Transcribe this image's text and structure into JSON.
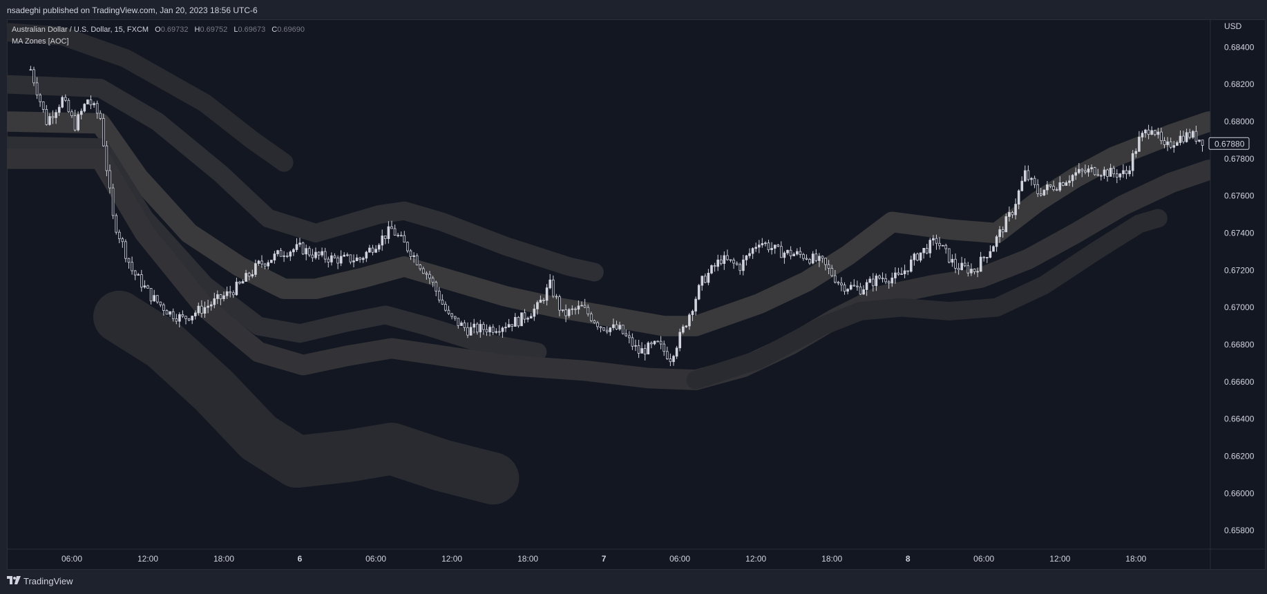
{
  "header": {
    "publisher": "nsadeghi published on TradingView.com, Jan 20, 2023 18:56 UTC-6"
  },
  "legend": {
    "symbol": "Australian Dollar / U.S. Dollar, 15, FXCM",
    "o_key": "O",
    "o_val": "0.69732",
    "h_key": "H",
    "h_val": "0.69752",
    "l_key": "L",
    "l_val": "0.69673",
    "c_key": "C",
    "c_val": "0.69690",
    "indicator": "MA Zones [AOC]"
  },
  "footer": {
    "brand": "TradingView"
  },
  "colors": {
    "background": "#131722",
    "frame": "#1e222d",
    "candle": "#d1d4dc",
    "band_inner": "#4a4a4a",
    "band_outer": "#2f3035",
    "text": "#d1d4dc"
  },
  "chart_data": {
    "type": "line",
    "currency_label": "USD",
    "last_price_label": "0.67880",
    "ylim": [
      0.657,
      0.6855
    ],
    "y_ticks": [
      0.684,
      0.682,
      0.68,
      0.678,
      0.676,
      0.674,
      0.672,
      0.67,
      0.668,
      0.666,
      0.664,
      0.662,
      0.66,
      0.658
    ],
    "y_tick_labels": [
      "0.68400",
      "0.68200",
      "0.68000",
      "0.67800",
      "0.67600",
      "0.67400",
      "0.67200",
      "0.67000",
      "0.66800",
      "0.66600",
      "0.66400",
      "0.66200",
      "0.66000",
      "0.65800"
    ],
    "x_ticks": [
      {
        "label": "06:00",
        "bar": 13
      },
      {
        "label": "12:00",
        "bar": 37
      },
      {
        "label": "18:00",
        "bar": 61
      },
      {
        "label": "6",
        "bar": 85
      },
      {
        "label": "06:00",
        "bar": 109
      },
      {
        "label": "12:00",
        "bar": 133
      },
      {
        "label": "18:00",
        "bar": 157
      },
      {
        "label": "7",
        "bar": 181
      },
      {
        "label": "06:00",
        "bar": 205
      },
      {
        "label": "12:00",
        "bar": 229
      },
      {
        "label": "18:00",
        "bar": 253
      },
      {
        "label": "8",
        "bar": 277
      },
      {
        "label": "06:00",
        "bar": 301
      },
      {
        "label": "12:00",
        "bar": 325
      },
      {
        "label": "18:00",
        "bar": 349
      }
    ],
    "x_range_bars": [
      -7.5,
      372.5
    ],
    "price_path": [
      [
        0,
        0.6828
      ],
      [
        5,
        0.68
      ],
      [
        10,
        0.6812
      ],
      [
        14,
        0.6798
      ],
      [
        18,
        0.6812
      ],
      [
        22,
        0.6802
      ],
      [
        26,
        0.6748
      ],
      [
        32,
        0.672
      ],
      [
        38,
        0.6706
      ],
      [
        44,
        0.6697
      ],
      [
        48,
        0.6694
      ],
      [
        55,
        0.67
      ],
      [
        62,
        0.6707
      ],
      [
        66,
        0.6712
      ],
      [
        72,
        0.6723
      ],
      [
        80,
        0.673
      ],
      [
        85,
        0.6732
      ],
      [
        90,
        0.6728
      ],
      [
        96,
        0.6726
      ],
      [
        104,
        0.6726
      ],
      [
        110,
        0.6736
      ],
      [
        114,
        0.6742
      ],
      [
        120,
        0.673
      ],
      [
        126,
        0.6716
      ],
      [
        132,
        0.6695
      ],
      [
        138,
        0.6688
      ],
      [
        146,
        0.6689
      ],
      [
        154,
        0.6693
      ],
      [
        160,
        0.67
      ],
      [
        164,
        0.6712
      ],
      [
        168,
        0.6696
      ],
      [
        174,
        0.67
      ],
      [
        180,
        0.669
      ],
      [
        186,
        0.6688
      ],
      [
        192,
        0.6676
      ],
      [
        198,
        0.668
      ],
      [
        202,
        0.6673
      ],
      [
        206,
        0.6688
      ],
      [
        212,
        0.6714
      ],
      [
        218,
        0.6726
      ],
      [
        224,
        0.6722
      ],
      [
        230,
        0.6736
      ],
      [
        236,
        0.673
      ],
      [
        244,
        0.6728
      ],
      [
        250,
        0.6724
      ],
      [
        256,
        0.6712
      ],
      [
        262,
        0.671
      ],
      [
        268,
        0.6716
      ],
      [
        274,
        0.6716
      ],
      [
        280,
        0.6728
      ],
      [
        286,
        0.6736
      ],
      [
        292,
        0.6722
      ],
      [
        298,
        0.672
      ],
      [
        304,
        0.6734
      ],
      [
        310,
        0.6752
      ],
      [
        314,
        0.6772
      ],
      [
        318,
        0.6762
      ],
      [
        324,
        0.6766
      ],
      [
        330,
        0.6772
      ],
      [
        336,
        0.6774
      ],
      [
        342,
        0.6772
      ],
      [
        346,
        0.6772
      ],
      [
        350,
        0.679
      ],
      [
        354,
        0.6798
      ],
      [
        358,
        0.6785
      ],
      [
        362,
        0.6791
      ],
      [
        366,
        0.6793
      ],
      [
        370,
        0.679
      ]
    ],
    "bands": [
      {
        "name": "upper-far",
        "color": "#2a2b30",
        "width": 0.001,
        "points": [
          [
            -7,
            0.6848
          ],
          [
            10,
            0.6846
          ],
          [
            30,
            0.6834
          ],
          [
            55,
            0.681
          ],
          [
            70,
            0.679
          ],
          [
            80,
            0.6778
          ]
        ]
      },
      {
        "name": "upper-mid",
        "color": "#2e2f34",
        "width": 0.001,
        "points": [
          [
            -7,
            0.682
          ],
          [
            22,
            0.6818
          ],
          [
            40,
            0.68
          ],
          [
            60,
            0.6772
          ],
          [
            75,
            0.6748
          ],
          [
            90,
            0.674
          ],
          [
            110,
            0.675
          ],
          [
            118,
            0.6752
          ],
          [
            130,
            0.6746
          ],
          [
            150,
            0.6733
          ],
          [
            170,
            0.6722
          ],
          [
            178,
            0.6719
          ]
        ]
      },
      {
        "name": "ma-main",
        "color": "#3a3a3d",
        "width": 0.0011,
        "points": [
          [
            -7,
            0.68
          ],
          [
            22,
            0.6799
          ],
          [
            34,
            0.677
          ],
          [
            50,
            0.674
          ],
          [
            66,
            0.6722
          ],
          [
            80,
            0.671
          ],
          [
            90,
            0.671
          ],
          [
            105,
            0.6716
          ],
          [
            118,
            0.6722
          ],
          [
            130,
            0.6716
          ],
          [
            150,
            0.6706
          ],
          [
            166,
            0.67
          ],
          [
            180,
            0.6696
          ],
          [
            200,
            0.669
          ],
          [
            210,
            0.669
          ],
          [
            230,
            0.6702
          ],
          [
            245,
            0.6714
          ],
          [
            258,
            0.6728
          ],
          [
            272,
            0.6746
          ],
          [
            290,
            0.6742
          ],
          [
            305,
            0.674
          ],
          [
            318,
            0.6757
          ],
          [
            330,
            0.677
          ],
          [
            342,
            0.6781
          ],
          [
            360,
            0.6793
          ],
          [
            372,
            0.68
          ]
        ]
      },
      {
        "name": "ma-mid-2",
        "color": "#2e2f34",
        "width": 0.001,
        "points": [
          [
            -7,
            0.6787
          ],
          [
            22,
            0.6786
          ],
          [
            36,
            0.6748
          ],
          [
            55,
            0.6712
          ],
          [
            72,
            0.669
          ],
          [
            85,
            0.6686
          ],
          [
            100,
            0.6692
          ],
          [
            112,
            0.6696
          ],
          [
            125,
            0.669
          ],
          [
            140,
            0.6682
          ],
          [
            160,
            0.6676
          ]
        ]
      },
      {
        "name": "ma-low",
        "color": "#333337",
        "width": 0.0011,
        "points": [
          [
            -7,
            0.678
          ],
          [
            22,
            0.678
          ],
          [
            36,
            0.674
          ],
          [
            55,
            0.67
          ],
          [
            72,
            0.6676
          ],
          [
            86,
            0.6669
          ],
          [
            100,
            0.6674
          ],
          [
            114,
            0.6678
          ],
          [
            130,
            0.6674
          ],
          [
            150,
            0.6669
          ],
          [
            175,
            0.6666
          ],
          [
            195,
            0.6662
          ],
          [
            210,
            0.6661
          ],
          [
            225,
            0.6668
          ],
          [
            240,
            0.668
          ],
          [
            254,
            0.6694
          ],
          [
            268,
            0.6706
          ],
          [
            285,
            0.6712
          ],
          [
            300,
            0.6716
          ],
          [
            315,
            0.6726
          ],
          [
            330,
            0.674
          ],
          [
            345,
            0.6755
          ],
          [
            360,
            0.6767
          ],
          [
            372,
            0.6774
          ]
        ]
      },
      {
        "name": "lower-far",
        "color": "#2a2b30",
        "width": 0.001,
        "points": [
          [
            210,
            0.6661
          ],
          [
            230,
            0.6672
          ],
          [
            250,
            0.669
          ],
          [
            262,
            0.6698
          ],
          [
            275,
            0.67
          ],
          [
            290,
            0.6698
          ],
          [
            305,
            0.67
          ],
          [
            320,
            0.6712
          ],
          [
            336,
            0.673
          ],
          [
            350,
            0.6745
          ],
          [
            356,
            0.6748
          ]
        ]
      },
      {
        "name": "deep-band",
        "color": "#2a2b30",
        "width": 0.0028,
        "points": [
          [
            28,
            0.6695
          ],
          [
            42,
            0.668
          ],
          [
            58,
            0.6655
          ],
          [
            72,
            0.663
          ],
          [
            84,
            0.6617
          ],
          [
            100,
            0.662
          ],
          [
            114,
            0.6624
          ],
          [
            130,
            0.6615
          ],
          [
            146,
            0.6608
          ]
        ]
      }
    ]
  }
}
